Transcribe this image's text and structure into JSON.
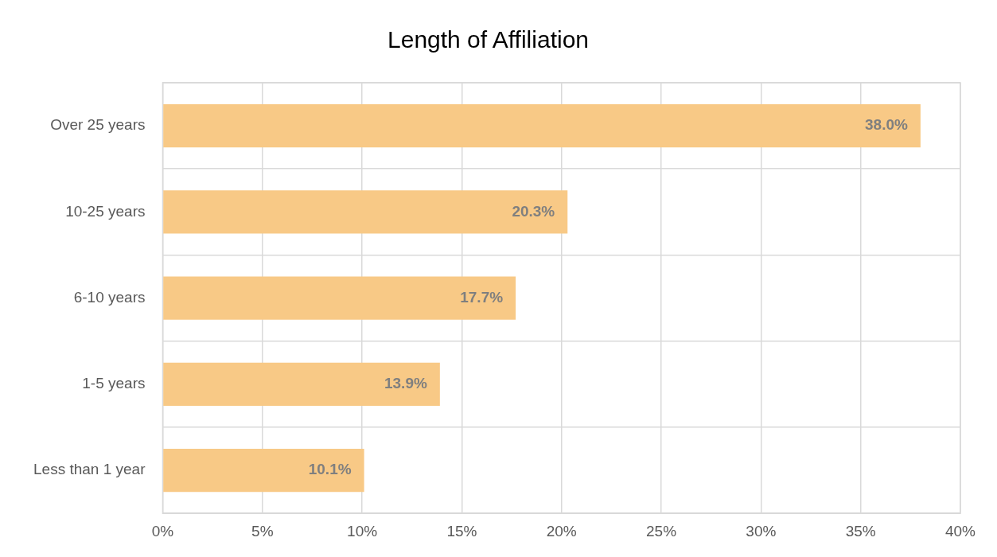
{
  "chart_data": {
    "type": "bar",
    "orientation": "horizontal",
    "title": "Length of Affiliation",
    "categories": [
      "Over 25 years",
      "10-25 years",
      "6-10 years",
      "1-5 years",
      "Less than 1 year"
    ],
    "values": [
      38.0,
      20.3,
      17.7,
      13.9,
      10.1
    ],
    "value_labels": [
      "38.0%",
      "20.3%",
      "17.7%",
      "13.9%",
      "10.1%"
    ],
    "color": "#f8c986",
    "xlim": [
      0,
      40
    ],
    "xticks": [
      {
        "value": 0,
        "label": "0%"
      },
      {
        "value": 5,
        "label": "5%"
      },
      {
        "value": 10,
        "label": "10%"
      },
      {
        "value": 15,
        "label": "15%"
      },
      {
        "value": 20,
        "label": "20%"
      },
      {
        "value": 25,
        "label": "25%"
      },
      {
        "value": 30,
        "label": "30%"
      },
      {
        "value": 35,
        "label": "35%"
      },
      {
        "value": 40,
        "label": "40%"
      }
    ],
    "grid": true,
    "legend": false
  }
}
